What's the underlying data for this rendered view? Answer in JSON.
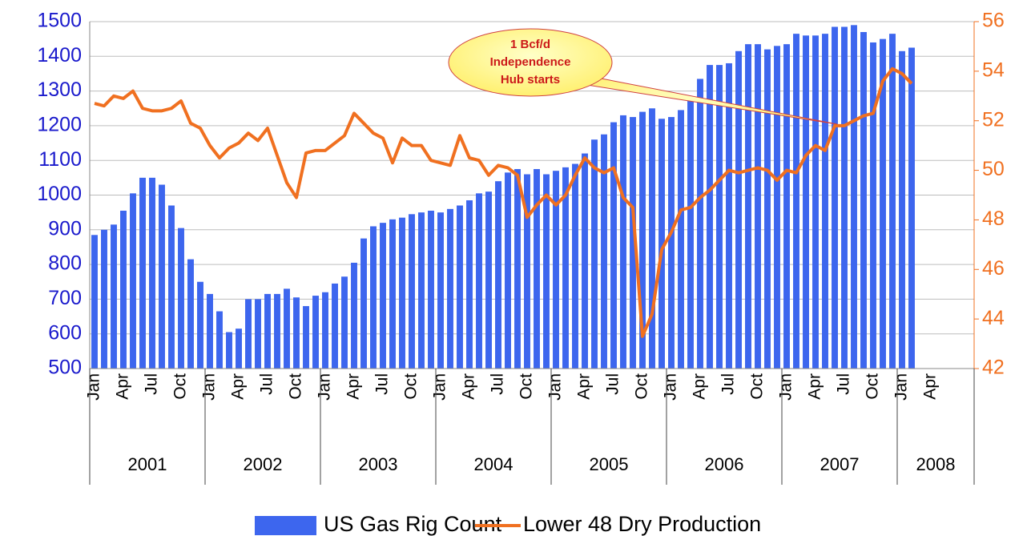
{
  "chart_data": {
    "type": "bar-line",
    "categories": [
      "Jan",
      null,
      null,
      "Apr",
      null,
      null,
      "Jul",
      null,
      null,
      "Oct",
      null,
      null,
      "Jan",
      null,
      null,
      "Apr",
      null,
      null,
      "Jul",
      null,
      null,
      "Oct",
      null,
      null,
      "Jan",
      null,
      null,
      "Apr",
      null,
      null,
      "Jul",
      null,
      null,
      "Oct",
      null,
      null,
      "Jan",
      null,
      null,
      "Apr",
      null,
      null,
      "Jul",
      null,
      null,
      "Oct",
      null,
      null,
      "Jan",
      null,
      null,
      "Apr",
      null,
      null,
      "Jul",
      null,
      null,
      "Oct",
      null,
      null,
      "Jan",
      null,
      null,
      "Apr",
      null,
      null,
      "Jul",
      null,
      null,
      "Oct",
      null,
      null,
      "Jan",
      null,
      null,
      "Apr",
      null,
      null,
      "Jul",
      null,
      null,
      "Oct",
      null,
      null,
      "Jan",
      null,
      null,
      "Apr",
      null,
      null,
      null,
      null
    ],
    "years": [
      "2001",
      "2002",
      "2003",
      "2004",
      "2005",
      "2006",
      "2007",
      "2008"
    ],
    "series": [
      {
        "name": "US Gas Rig Count",
        "type": "bar",
        "color": "#3d66ee",
        "values": [
          885,
          900,
          915,
          955,
          1005,
          1050,
          1050,
          1030,
          970,
          905,
          815,
          750,
          715,
          665,
          605,
          615,
          700,
          700,
          715,
          715,
          730,
          705,
          680,
          710,
          720,
          745,
          765,
          805,
          875,
          910,
          920,
          930,
          935,
          945,
          950,
          955,
          950,
          960,
          970,
          985,
          1005,
          1010,
          1040,
          1065,
          1075,
          1060,
          1075,
          1060,
          1070,
          1080,
          1090,
          1120,
          1160,
          1175,
          1210,
          1230,
          1225,
          1240,
          1250,
          1220,
          1225,
          1245,
          1280,
          1335,
          1375,
          1375,
          1380,
          1415,
          1435,
          1435,
          1420,
          1430,
          1435,
          1465,
          1460,
          1460,
          1465,
          1485,
          1485,
          1490,
          1470,
          1440,
          1450,
          1465,
          1415,
          1425,
          null,
          null,
          null,
          null,
          null,
          null
        ]
      },
      {
        "name": "Lower 48 Dry Production",
        "type": "line",
        "axis": "y2",
        "color": "#f07020",
        "values": [
          52.7,
          52.6,
          53.0,
          52.9,
          53.2,
          52.5,
          52.4,
          52.4,
          52.5,
          52.8,
          51.9,
          51.7,
          51.0,
          50.5,
          50.9,
          51.1,
          51.5,
          51.2,
          51.7,
          50.6,
          49.5,
          48.9,
          50.7,
          50.8,
          50.8,
          51.1,
          51.4,
          52.3,
          51.9,
          51.5,
          51.3,
          50.3,
          51.3,
          51.0,
          51.0,
          50.4,
          50.3,
          50.2,
          51.4,
          50.5,
          50.4,
          49.8,
          50.2,
          50.1,
          49.8,
          48.1,
          48.6,
          49.0,
          48.6,
          49.0,
          49.8,
          50.5,
          50.1,
          49.9,
          50.1,
          48.9,
          48.5,
          43.3,
          44.2,
          46.8,
          47.5,
          48.4,
          48.5,
          48.9,
          49.2,
          49.6,
          50.0,
          49.9,
          50.0,
          50.1,
          50.0,
          49.6,
          50.0,
          49.9,
          50.6,
          51.0,
          50.8,
          51.8,
          51.8,
          52.0,
          52.2,
          52.3,
          53.6,
          54.1,
          53.9,
          53.5,
          null,
          null,
          null,
          null,
          null,
          null
        ]
      }
    ],
    "ylim": [
      500,
      1500
    ],
    "yticks": [
      500,
      600,
      700,
      800,
      900,
      1000,
      1100,
      1200,
      1300,
      1400,
      1500
    ],
    "y2lim": [
      42,
      56
    ],
    "y2ticks": [
      42,
      44,
      46,
      48,
      50,
      52,
      54,
      56
    ],
    "y_color": "#1a1acc",
    "y2_color": "#f07020",
    "grid": true,
    "annotation": [
      "1 Bcf/d",
      "Independence",
      "Hub starts"
    ],
    "legend": "bottom"
  }
}
